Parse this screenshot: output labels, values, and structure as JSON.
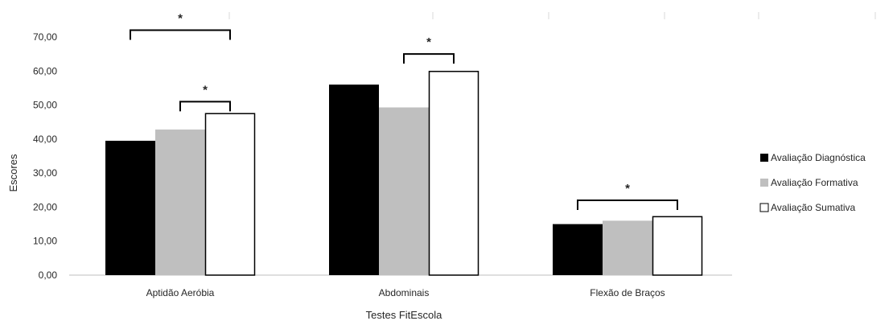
{
  "chart_data": {
    "type": "bar",
    "title": "",
    "xlabel": "Testes FitEscola",
    "ylabel": "Escores",
    "ylim": [
      0,
      70
    ],
    "yticks": [
      "0,00",
      "10,00",
      "20,00",
      "30,00",
      "40,00",
      "50,00",
      "60,00",
      "70,00"
    ],
    "grid": false,
    "legend_position": "right",
    "categories": [
      "Aptidão Aeróbia",
      "Abdominais",
      "Flexão de Braços"
    ],
    "series": [
      {
        "name": "Avaliação Diagnóstica",
        "values": [
          39.5,
          56.0,
          15.0
        ],
        "color": "#000000"
      },
      {
        "name": "Avaliação Formativa",
        "values": [
          42.8,
          49.3,
          16.0
        ],
        "color": "#bfbfbf"
      },
      {
        "name": "Avaliação Sumativa",
        "values": [
          47.6,
          60.0,
          17.3
        ],
        "color": "#ffffff"
      }
    ],
    "annotations": [
      {
        "text": "*",
        "category": 0,
        "from_series": 0,
        "to_series": 2,
        "level": 72
      },
      {
        "text": "*",
        "category": 0,
        "from_series": 1,
        "to_series": 2,
        "level": 51
      },
      {
        "text": "*",
        "category": 1,
        "from_series": 1,
        "to_series": 2,
        "level": 65
      },
      {
        "text": "*",
        "category": 2,
        "from_series": 0,
        "to_series": 2,
        "level": 22
      }
    ]
  }
}
